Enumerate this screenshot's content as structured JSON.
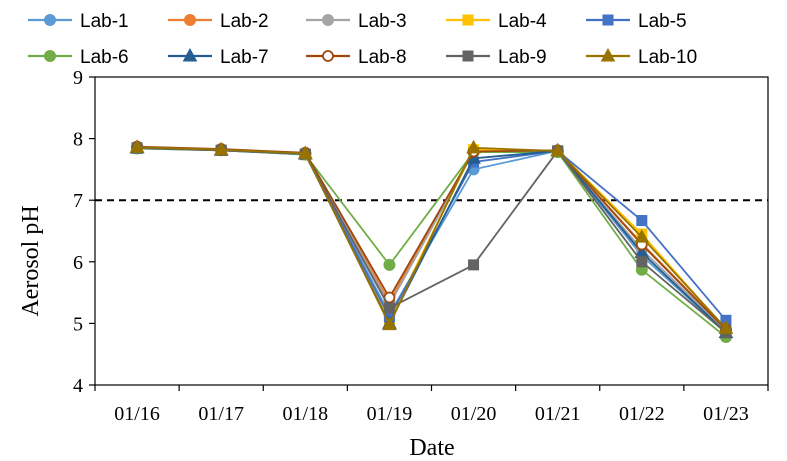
{
  "chart_data": {
    "type": "line",
    "xlabel": "Date",
    "ylabel": "Aerosol pH",
    "categories": [
      "01/16",
      "01/17",
      "01/18",
      "01/19",
      "01/20",
      "01/21",
      "01/22",
      "01/23"
    ],
    "ylim": [
      4,
      9
    ],
    "yticks": [
      4,
      5,
      6,
      7,
      8,
      9
    ],
    "reference_line": {
      "y": 7,
      "style": "dashed",
      "color": "#000000"
    },
    "legend_position": "top",
    "series": [
      {
        "name": "Lab-1",
        "color": "#5b9bd5",
        "marker": "circle",
        "values": [
          7.85,
          7.82,
          7.75,
          5.15,
          7.5,
          7.8,
          6.1,
          4.85
        ]
      },
      {
        "name": "Lab-2",
        "color": "#ed7d31",
        "marker": "circle",
        "values": [
          7.86,
          7.82,
          7.76,
          5.35,
          7.8,
          7.8,
          6.3,
          4.9
        ]
      },
      {
        "name": "Lab-3",
        "color": "#a5a5a5",
        "marker": "circle",
        "values": [
          7.86,
          7.82,
          7.76,
          5.3,
          7.78,
          7.8,
          6.2,
          4.88
        ]
      },
      {
        "name": "Lab-4",
        "color": "#ffc000",
        "marker": "square",
        "values": [
          7.85,
          7.81,
          7.75,
          5.05,
          7.82,
          7.8,
          6.45,
          4.9
        ]
      },
      {
        "name": "Lab-5",
        "color": "#4472c4",
        "marker": "square",
        "values": [
          7.84,
          7.81,
          7.74,
          5.1,
          7.62,
          7.8,
          6.67,
          5.05
        ]
      },
      {
        "name": "Lab-6",
        "color": "#70ad47",
        "marker": "circle",
        "values": [
          7.84,
          7.81,
          7.74,
          5.95,
          7.78,
          7.78,
          5.87,
          4.78
        ]
      },
      {
        "name": "Lab-7",
        "color": "#255e91",
        "marker": "triangle",
        "values": [
          7.85,
          7.81,
          7.75,
          5.0,
          7.68,
          7.8,
          6.15,
          4.85
        ]
      },
      {
        "name": "Lab-8",
        "color": "#9e480e",
        "marker": "circle-open",
        "values": [
          7.87,
          7.83,
          7.77,
          5.42,
          7.79,
          7.81,
          6.28,
          4.9
        ]
      },
      {
        "name": "Lab-9",
        "color": "#636363",
        "marker": "square",
        "values": [
          7.85,
          7.81,
          7.75,
          5.25,
          5.95,
          7.8,
          6.0,
          4.85
        ]
      },
      {
        "name": "Lab-10",
        "color": "#997300",
        "marker": "triangle",
        "values": [
          7.86,
          7.82,
          7.76,
          4.98,
          7.85,
          7.8,
          6.4,
          4.92
        ]
      }
    ]
  }
}
